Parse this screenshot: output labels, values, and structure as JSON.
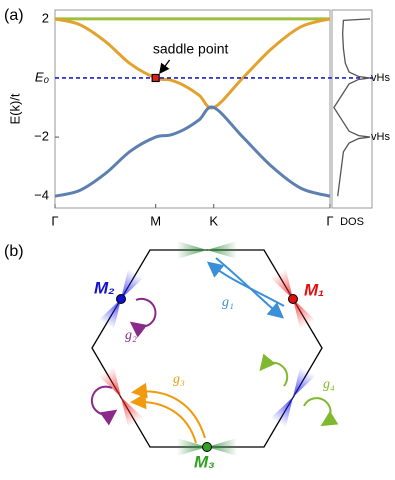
{
  "panel_labels": [
    "(a)",
    "(b)"
  ],
  "chart_data": {
    "type": "line",
    "ylabel": "E(k)/t",
    "x": [
      0,
      0.25,
      0.5,
      0.75,
      1,
      1.144,
      1.289,
      1.433,
      1.577,
      1.866,
      2.155,
      2.443,
      2.732
    ],
    "xlim": [
      0,
      2.732
    ],
    "xticks": [
      {
        "value": 0,
        "label": "Γ"
      },
      {
        "value": 1,
        "label": "M"
      },
      {
        "value": 1.577,
        "label": "K"
      },
      {
        "value": 2.732,
        "label": "Γ"
      }
    ],
    "ylim": [
      -4.4,
      2.3
    ],
    "yticks": [
      {
        "value": -4,
        "label": "−4"
      },
      {
        "value": -2,
        "label": "−2"
      },
      {
        "value": 0,
        "label": "E₀"
      },
      2
    ],
    "series": [
      {
        "color": "#9dbf3d",
        "values": [
          2,
          2,
          2,
          2,
          2,
          2,
          2,
          2,
          2,
          2,
          2,
          2,
          2
        ]
      },
      {
        "color": "#e1a32e",
        "values": [
          2,
          1.798,
          1.236,
          0.474,
          0,
          -0.068,
          -0.268,
          -0.586,
          -1,
          0,
          1,
          1.732,
          2
        ]
      },
      {
        "color": "#5e80b0",
        "values": [
          -4,
          -3.798,
          -3.236,
          -2.474,
          -2,
          -1.932,
          -1.732,
          -1.414,
          -1,
          -2,
          -3,
          -3.732,
          -4
        ]
      }
    ],
    "hline": {
      "value": 0,
      "color": "#1c20c8"
    },
    "annotation": {
      "text": "saddle point",
      "x": 1,
      "y": 0
    },
    "dos": {
      "label": "DOS",
      "xlim": [
        0,
        1
      ],
      "energy": [
        2,
        1.95,
        1.5,
        1,
        0.5,
        0.2,
        0.05,
        0,
        -0.05,
        -0.2,
        -0.5,
        -0.8,
        -1,
        -1.2,
        -1.5,
        -1.8,
        -1.95,
        -2,
        -2.05,
        -2.2,
        -2.5,
        -3,
        -3.5,
        -4
      ],
      "density": [
        1,
        0.3,
        0.28,
        0.3,
        0.35,
        0.45,
        0.7,
        1,
        0.7,
        0.45,
        0.3,
        0.15,
        0.05,
        0.15,
        0.3,
        0.45,
        0.7,
        1,
        0.7,
        0.45,
        0.3,
        0.25,
        0.2,
        0.15
      ],
      "color": "#555555",
      "vhs_labels": [
        {
          "text": "vHs",
          "y": 0
        },
        {
          "text": "vHs",
          "y": -2
        }
      ]
    }
  },
  "diagram": {
    "points": [
      {
        "label": "M₁",
        "color": "#e01010"
      },
      {
        "label": "M₂",
        "color": "#1010d0"
      },
      {
        "label": "M₃",
        "color": "#30a020"
      }
    ],
    "operations": [
      {
        "label": "g₁",
        "color": "#3a8fd8"
      },
      {
        "label": "g₂",
        "color": "#8a2a8a"
      },
      {
        "label": "g₃",
        "color": "#f09a10"
      },
      {
        "label": "g₄",
        "color": "#80b830"
      }
    ]
  }
}
